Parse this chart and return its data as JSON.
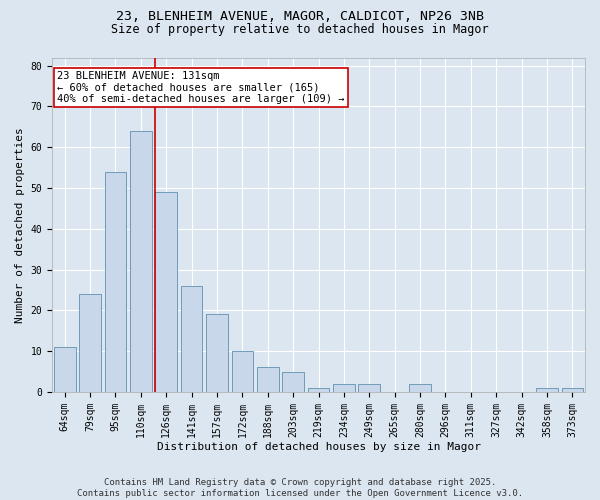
{
  "title_line1": "23, BLENHEIM AVENUE, MAGOR, CALDICOT, NP26 3NB",
  "title_line2": "Size of property relative to detached houses in Magor",
  "xlabel": "Distribution of detached houses by size in Magor",
  "ylabel": "Number of detached properties",
  "categories": [
    "64sqm",
    "79sqm",
    "95sqm",
    "110sqm",
    "126sqm",
    "141sqm",
    "157sqm",
    "172sqm",
    "188sqm",
    "203sqm",
    "219sqm",
    "234sqm",
    "249sqm",
    "265sqm",
    "280sqm",
    "296sqm",
    "311sqm",
    "327sqm",
    "342sqm",
    "358sqm",
    "373sqm"
  ],
  "values": [
    11,
    24,
    54,
    64,
    49,
    26,
    19,
    10,
    6,
    5,
    1,
    2,
    2,
    0,
    2,
    0,
    0,
    0,
    0,
    1,
    1
  ],
  "bar_color": "#c8d8ea",
  "bar_edge_color": "#6090b0",
  "vline_index": 4,
  "vline_color": "#cc0000",
  "annotation_text": "23 BLENHEIM AVENUE: 131sqm\n← 60% of detached houses are smaller (165)\n40% of semi-detached houses are larger (109) →",
  "annotation_box_color": "#ffffff",
  "annotation_box_edge": "#cc0000",
  "ylim": [
    0,
    82
  ],
  "yticks": [
    0,
    10,
    20,
    30,
    40,
    50,
    60,
    70,
    80
  ],
  "background_color": "#dce6f0",
  "plot_background": "#dce6f0",
  "footer": "Contains HM Land Registry data © Crown copyright and database right 2025.\nContains public sector information licensed under the Open Government Licence v3.0.",
  "title_fontsize": 9.5,
  "subtitle_fontsize": 8.5,
  "axis_label_fontsize": 8,
  "tick_fontsize": 7,
  "annotation_fontsize": 7.5,
  "footer_fontsize": 6.5
}
